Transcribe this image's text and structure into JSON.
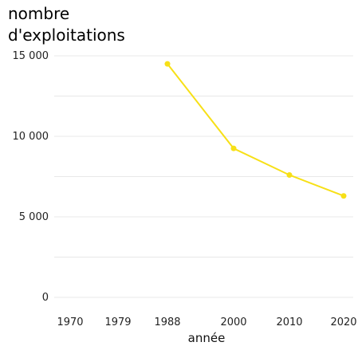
{
  "chart_data": {
    "type": "line",
    "ylabel_lines": [
      "nombre",
      "d'exploitations"
    ],
    "xlabel": "année",
    "x": [
      1970,
      1979,
      1988,
      2000,
      2010,
      2020
    ],
    "x_tick_labels": [
      "1970",
      "1979",
      "1988",
      "2000",
      "2010",
      "2020"
    ],
    "y_ticks": [
      0,
      5000,
      10000,
      15000
    ],
    "y_tick_labels": [
      "0",
      "5 000",
      "10 000",
      "15 000"
    ],
    "ylim": [
      0,
      15000
    ],
    "grid": true,
    "series": [
      {
        "color": "#f7e017",
        "values": [
          null,
          null,
          14500,
          9250,
          7600,
          6300
        ]
      }
    ]
  }
}
